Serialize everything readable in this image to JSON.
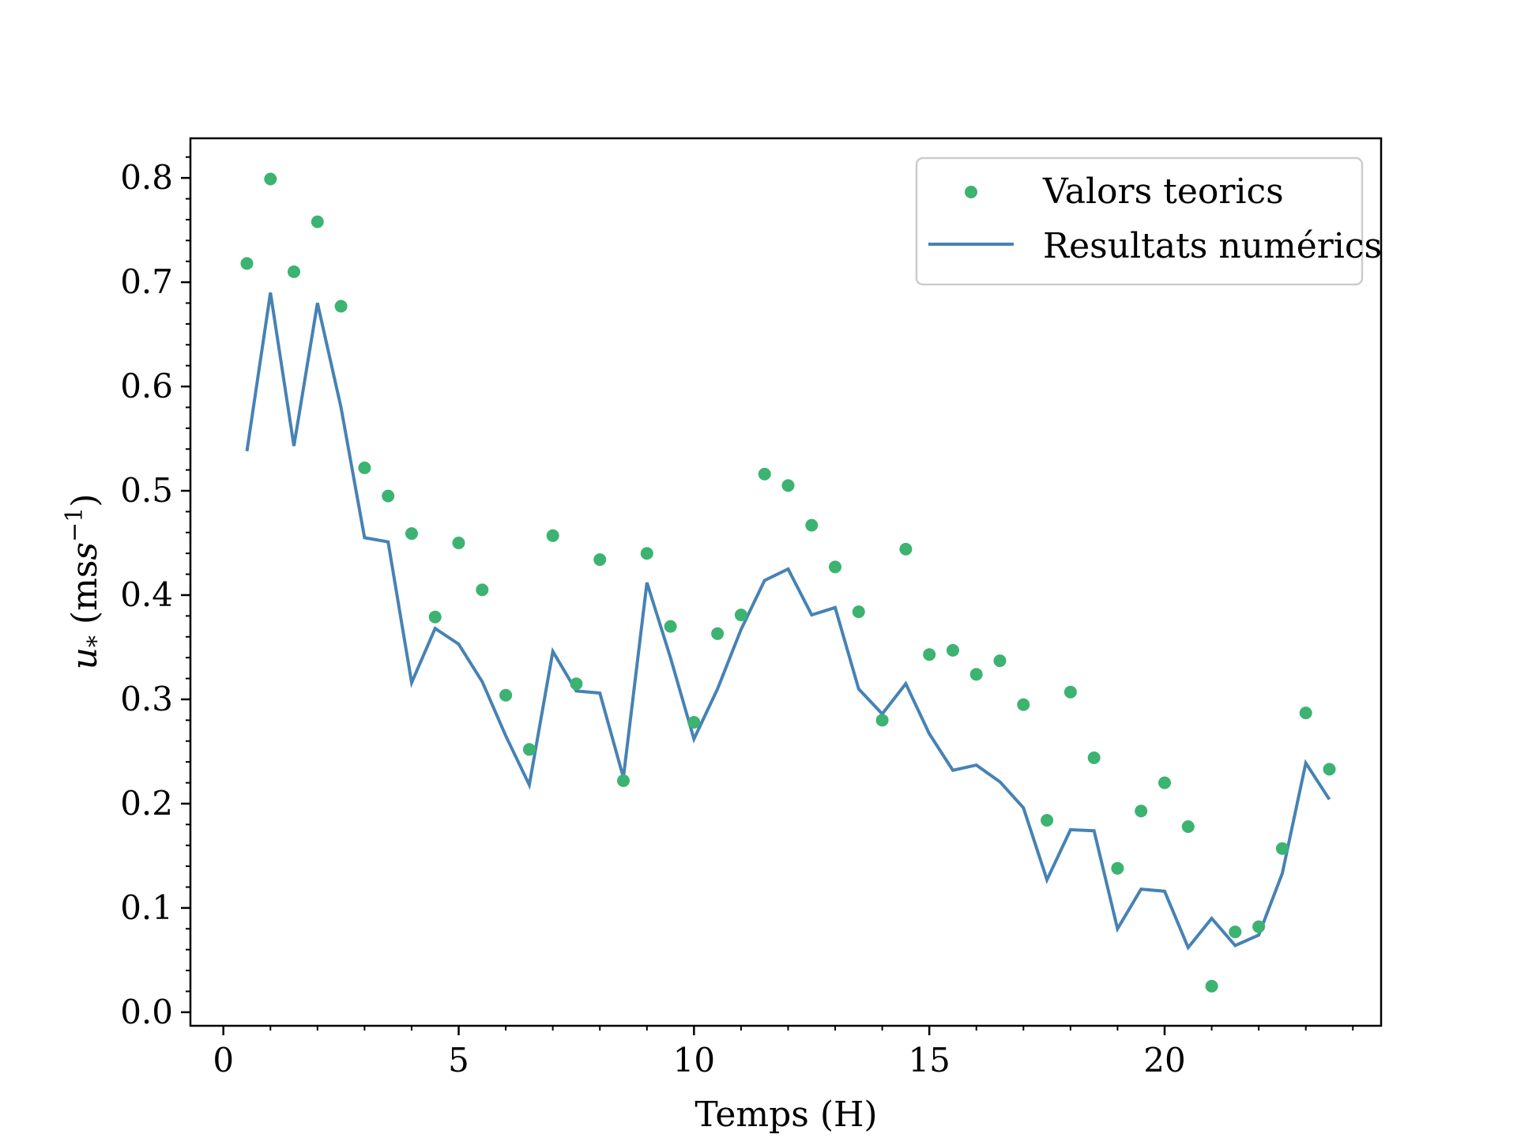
{
  "colors": {
    "scatter": "#3cb371",
    "line": "#4682b4",
    "axes": "#000000",
    "legend_border": "#cccccc"
  },
  "chart_data": {
    "type": "line",
    "title": "",
    "xlabel": "Temps (H)",
    "ylabel_main": "u",
    "ylabel_sub": "*",
    "ylabel_rest": " (ms",
    "ylabel_sup": "−1",
    "ylabel_close": ")",
    "xlim": [
      -0.7,
      24.6
    ],
    "ylim": [
      -0.013,
      0.838
    ],
    "x_ticks": [
      0,
      5,
      10,
      15,
      20
    ],
    "x_tick_labels": [
      "0",
      "5",
      "10",
      "15",
      "20"
    ],
    "y_ticks": [
      0.0,
      0.1,
      0.2,
      0.3,
      0.4,
      0.5,
      0.6,
      0.7,
      0.8
    ],
    "y_tick_labels": [
      "0.0",
      "0.1",
      "0.2",
      "0.3",
      "0.4",
      "0.5",
      "0.6",
      "0.7",
      "0.8"
    ],
    "grid": false,
    "legend_position": "top-right",
    "series": [
      {
        "name": "Valors teorics",
        "type": "scatter",
        "x": [
          0.5,
          1.0,
          1.5,
          2.0,
          2.5,
          3.0,
          3.5,
          4.0,
          4.5,
          5.0,
          5.5,
          6.0,
          6.5,
          7.0,
          7.5,
          8.0,
          8.5,
          9.0,
          9.5,
          10.0,
          10.5,
          11.0,
          11.5,
          12.0,
          12.5,
          13.0,
          13.5,
          14.0,
          14.5,
          15.0,
          15.5,
          16.0,
          16.5,
          17.0,
          17.5,
          18.0,
          18.5,
          19.0,
          19.5,
          20.0,
          20.5,
          21.0,
          21.5,
          22.0,
          22.5,
          23.0,
          23.5
        ],
        "y": [
          0.718,
          0.799,
          0.71,
          0.758,
          0.677,
          0.522,
          0.495,
          0.459,
          0.379,
          0.45,
          0.405,
          0.304,
          0.252,
          0.457,
          0.315,
          0.434,
          0.222,
          0.44,
          0.37,
          0.278,
          0.363,
          0.381,
          0.516,
          0.505,
          0.467,
          0.427,
          0.384,
          0.28,
          0.444,
          0.343,
          0.347,
          0.324,
          0.337,
          0.295,
          0.184,
          0.307,
          0.244,
          0.138,
          0.193,
          0.22,
          0.178,
          0.025,
          0.077,
          0.082,
          0.157,
          0.287,
          0.233
        ]
      },
      {
        "name": "Resultats numérics",
        "type": "line",
        "x": [
          0.5,
          1.0,
          1.5,
          2.0,
          2.5,
          3.0,
          3.5,
          4.0,
          4.5,
          5.0,
          5.5,
          6.0,
          6.5,
          7.0,
          7.5,
          8.0,
          8.5,
          9.0,
          9.5,
          10.0,
          10.5,
          11.0,
          11.5,
          12.0,
          12.5,
          13.0,
          13.5,
          14.0,
          14.5,
          15.0,
          15.5,
          16.0,
          16.5,
          17.0,
          17.5,
          18.0,
          18.5,
          19.0,
          19.5,
          20.0,
          20.5,
          21.0,
          21.5,
          22.0,
          22.5,
          23.0,
          23.5
        ],
        "y": [
          0.538,
          0.69,
          0.543,
          0.68,
          0.58,
          0.455,
          0.451,
          0.316,
          0.368,
          0.353,
          0.317,
          0.265,
          0.218,
          0.346,
          0.308,
          0.306,
          0.225,
          0.412,
          0.34,
          0.262,
          0.31,
          0.367,
          0.414,
          0.425,
          0.381,
          0.388,
          0.31,
          0.286,
          0.315,
          0.267,
          0.232,
          0.237,
          0.221,
          0.196,
          0.127,
          0.175,
          0.174,
          0.08,
          0.118,
          0.116,
          0.062,
          0.09,
          0.064,
          0.074,
          0.133,
          0.239,
          0.204
        ]
      }
    ]
  }
}
